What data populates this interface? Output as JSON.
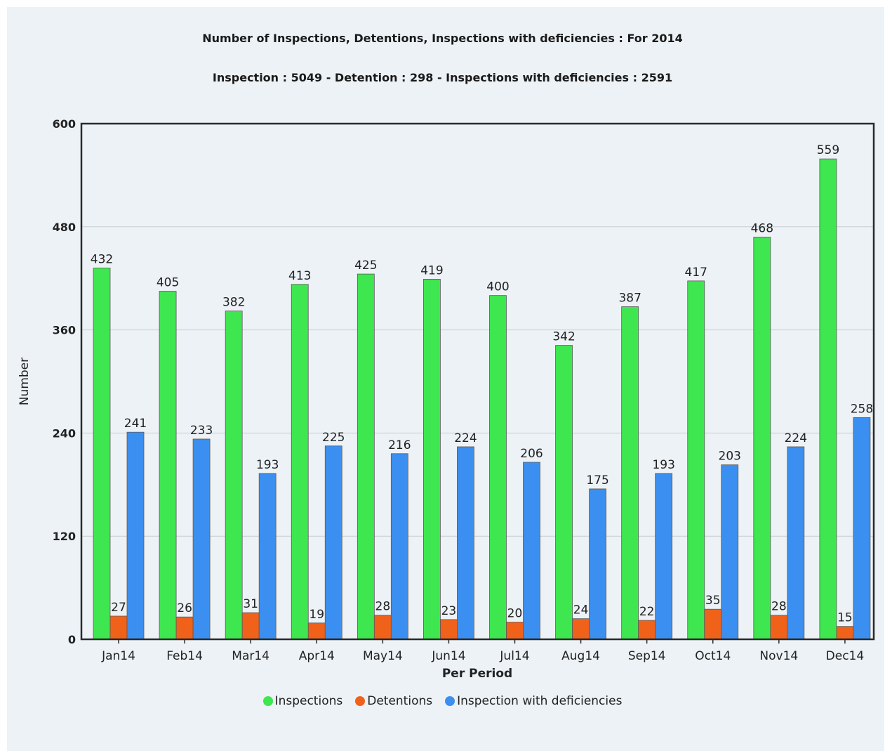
{
  "chart_data": {
    "type": "bar",
    "title": "Number of Inspections, Detentions, Inspections with deficiencies : For 2014",
    "subtitle": "Inspection : 5049 - Detention : 298 - Inspections with deficiencies : 2591",
    "xlabel": "Per Period",
    "ylabel": "Number",
    "ylim": [
      0,
      600
    ],
    "yticks": [
      0,
      120,
      240,
      360,
      480,
      600
    ],
    "grid": true,
    "legend_position": "bottom",
    "categories": [
      "Jan14",
      "Feb14",
      "Mar14",
      "Apr14",
      "May14",
      "Jun14",
      "Jul14",
      "Aug14",
      "Sep14",
      "Oct14",
      "Nov14",
      "Dec14"
    ],
    "series": [
      {
        "name": "Inspections",
        "color": "#3ee64f",
        "values": [
          432,
          405,
          382,
          413,
          425,
          419,
          400,
          342,
          387,
          417,
          468,
          559
        ]
      },
      {
        "name": "Detentions",
        "color": "#f0621a",
        "values": [
          27,
          26,
          31,
          19,
          28,
          23,
          20,
          24,
          22,
          35,
          28,
          15
        ]
      },
      {
        "name": "Inspection with deficiencies",
        "color": "#3b8ff0",
        "values": [
          241,
          233,
          193,
          225,
          216,
          224,
          206,
          175,
          193,
          203,
          224,
          258
        ]
      }
    ]
  }
}
